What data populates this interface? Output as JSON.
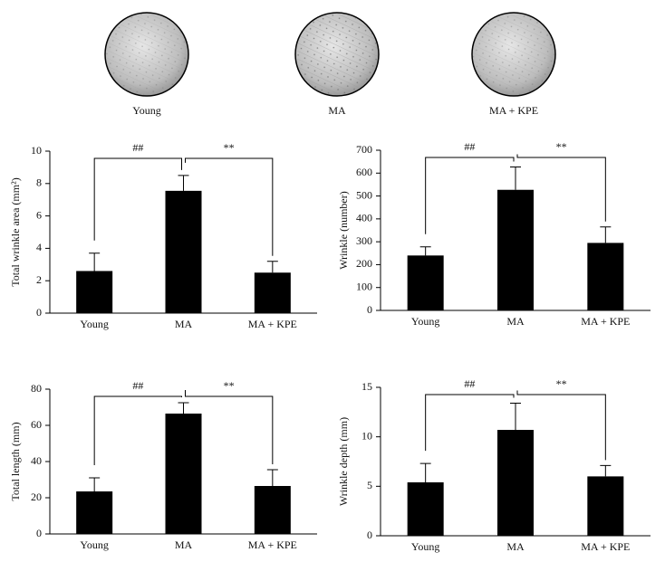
{
  "images": {
    "labels": [
      "Young",
      "MA",
      "MA + KPE"
    ]
  },
  "chart_data": [
    {
      "type": "bar",
      "y_label": "Total wrinkle area (mm²)",
      "categories": [
        "Young",
        "MA",
        "MA + KPE"
      ],
      "values": [
        2.6,
        7.55,
        2.5
      ],
      "errors": [
        1.1,
        0.95,
        0.7
      ],
      "color": "#000000",
      "ylim": [
        0,
        10
      ],
      "yticks": [
        0,
        2,
        4,
        6,
        8,
        10
      ],
      "annotations": [
        "##",
        "**"
      ]
    },
    {
      "type": "bar",
      "y_label": "Wrinkle (number)",
      "categories": [
        "Young",
        "MA",
        "MA + KPE"
      ],
      "values": [
        240,
        527,
        295
      ],
      "errors": [
        38,
        100,
        70
      ],
      "color": "#000000",
      "ylim": [
        0,
        700
      ],
      "yticks": [
        0,
        100,
        200,
        300,
        400,
        500,
        600,
        700
      ],
      "annotations": [
        "##",
        "**"
      ]
    },
    {
      "type": "bar",
      "y_label": "Total length (mm)",
      "categories": [
        "Young",
        "MA",
        "MA + KPE"
      ],
      "values": [
        23.5,
        66.5,
        26.5
      ],
      "errors": [
        7.5,
        6,
        9
      ],
      "color": "#000000",
      "ylim": [
        0,
        80
      ],
      "yticks": [
        0,
        20,
        40,
        60,
        80
      ],
      "annotations": [
        "##",
        "**"
      ]
    },
    {
      "type": "bar",
      "y_label": "Wrinkle depth (mm)",
      "categories": [
        "Young",
        "MA",
        "MA + KPE"
      ],
      "values": [
        5.4,
        10.7,
        6.0
      ],
      "errors": [
        1.9,
        2.7,
        1.1
      ],
      "color": "#000000",
      "ylim": [
        0,
        15
      ],
      "yticks": [
        0,
        5,
        10,
        15
      ],
      "annotations": [
        "##",
        "**"
      ]
    }
  ]
}
